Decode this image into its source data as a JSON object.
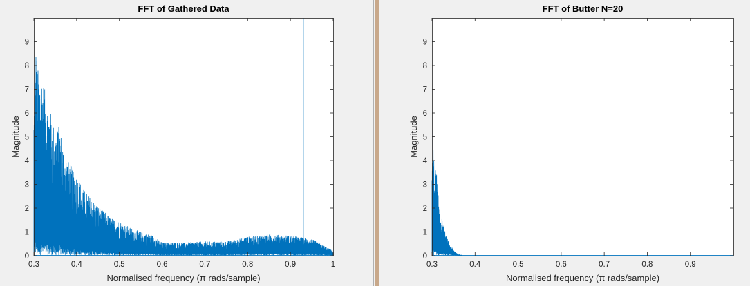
{
  "charts": {
    "left": {
      "title": "FFT of Gathered Data",
      "xlabel": "Normalised frequency (π rads/sample)",
      "ylabel": "Magnitude"
    },
    "right": {
      "title": "FFT of Butter N=20",
      "xlabel": "Normalised frequency (π rads/sample)",
      "ylabel": "Magnitude"
    }
  },
  "colors": {
    "line": "#0072bd",
    "axes": "#262626",
    "background": "#f0f0f0",
    "plot_background": "#ffffff"
  },
  "chart_data": [
    {
      "type": "line",
      "title": "FFT of Gathered Data",
      "xlabel": "Normalised frequency (π rads/sample)",
      "ylabel": "Magnitude",
      "xlim": [
        0.3,
        1.0
      ],
      "ylim": [
        0,
        10
      ],
      "xticks": [
        "0.3",
        "0.4",
        "0.5",
        "0.6",
        "0.7",
        "0.8",
        "0.9",
        "1"
      ],
      "yticks": [
        "0",
        "1",
        "2",
        "3",
        "4",
        "5",
        "6",
        "7",
        "8",
        "9"
      ],
      "grid": false,
      "series": [
        {
          "envelope_x": [
            0.3,
            0.305,
            0.31,
            0.32,
            0.33,
            0.34,
            0.35,
            0.36,
            0.37,
            0.38,
            0.4,
            0.42,
            0.45,
            0.48,
            0.5,
            0.52,
            0.55,
            0.58,
            0.6,
            0.65,
            0.7,
            0.75,
            0.8,
            0.85,
            0.9,
            0.95,
            0.98,
            1.0
          ],
          "envelope_y": [
            6.2,
            8.9,
            7.8,
            7.6,
            6.5,
            6.0,
            5.2,
            5.5,
            4.5,
            4.0,
            3.4,
            2.7,
            2.1,
            1.6,
            1.45,
            1.25,
            1.0,
            0.85,
            0.55,
            0.55,
            0.6,
            0.6,
            0.8,
            0.9,
            0.85,
            0.7,
            0.4,
            0.2
          ],
          "spikes": [
            {
              "x": 0.93,
              "y": 10
            }
          ]
        }
      ]
    },
    {
      "type": "line",
      "title": "FFT of Butter N=20",
      "xlabel": "Normalised frequency (π rads/sample)",
      "ylabel": "Magnitude",
      "xlim": [
        0.3,
        1.0
      ],
      "ylim": [
        0,
        10
      ],
      "xticks": [
        "0.3",
        "0.4",
        "0.5",
        "0.6",
        "0.7",
        "0.8",
        "0.9"
      ],
      "yticks": [
        "0",
        "1",
        "2",
        "3",
        "4",
        "5",
        "6",
        "7",
        "8",
        "9"
      ],
      "grid": false,
      "series": [
        {
          "envelope_x": [
            0.3,
            0.302,
            0.305,
            0.31,
            0.315,
            0.32,
            0.33,
            0.34,
            0.35,
            0.36,
            0.37,
            1.0
          ],
          "envelope_y": [
            4.5,
            5.6,
            3.6,
            3.7,
            2.4,
            1.8,
            1.0,
            0.5,
            0.25,
            0.08,
            0.0,
            0.0
          ]
        }
      ]
    }
  ]
}
